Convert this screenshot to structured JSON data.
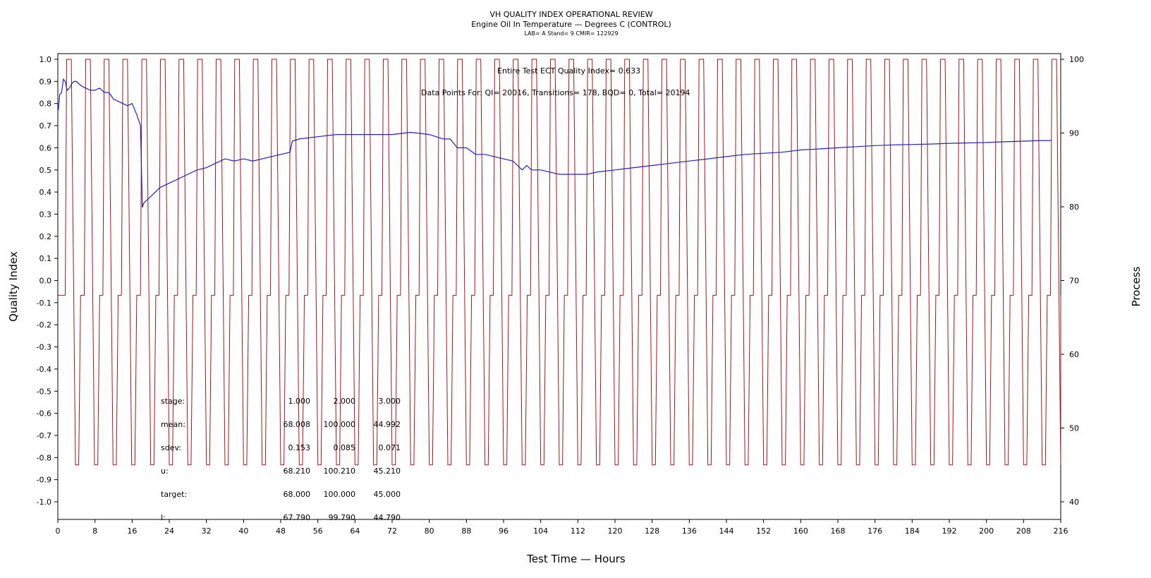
{
  "chart_data": {
    "type": "line",
    "title": "VH QUALITY INDEX OPERATIONAL REVIEW",
    "subtitle": "Engine Oil In Temperature — Degrees C (CONTROL)",
    "subtitle2": "LAB= A Stand= 9 CMIR= 122929",
    "xlabel": "Test Time — Hours",
    "ylabel": "Quality Index",
    "y2label": "Process",
    "xlim": [
      0,
      216
    ],
    "ylim": [
      -1.0,
      1.0
    ],
    "y2lim": [
      40,
      100
    ],
    "xticks": [
      "0",
      "8",
      "16",
      "24",
      "32",
      "40",
      "48",
      "56",
      "64",
      "72",
      "80",
      "88",
      "96",
      "104",
      "112",
      "120",
      "128",
      "136",
      "144",
      "152",
      "160",
      "168",
      "176",
      "184",
      "192",
      "200",
      "208",
      "216"
    ],
    "yticks": [
      "1.0",
      "0.9",
      "0.8",
      "0.7",
      "0.6",
      "0.5",
      "0.4",
      "0.3",
      "0.2",
      "0.1",
      "0.0",
      "-0.1",
      "-0.2",
      "-0.3",
      "-0.4",
      "-0.5",
      "-0.6",
      "-0.7",
      "-0.8",
      "-0.9",
      "-1.0"
    ],
    "y2ticks": [
      "100",
      "90",
      "80",
      "70",
      "60",
      "50",
      "40"
    ],
    "annotation_qi": "Entire Test ECT Quality Index=   0.633",
    "annotation_points": "Data Points For: QI= 20016, Transitions=   178, BQD=     0, Total= 20194",
    "stats": {
      "rows": [
        {
          "label": "stage:",
          "v1": "1.000",
          "v2": "2.000",
          "v3": "3.000"
        },
        {
          "label": "mean:",
          "v1": "68.008",
          "v2": "100.000",
          "v3": "44.992"
        },
        {
          "label": "sdev:",
          "v1": "0.153",
          "v2": "0.085",
          "v3": "0.071"
        },
        {
          "label": "u:",
          "v1": "68.210",
          "v2": "100.210",
          "v3": "45.210"
        },
        {
          "label": "target:",
          "v1": "68.000",
          "v2": "100.000",
          "v3": "45.000"
        },
        {
          "label": "l:",
          "v1": "67.790",
          "v2": "99.790",
          "v3": "44.790"
        }
      ]
    },
    "series": [
      {
        "axis": "left",
        "color": "#2222aa",
        "x": [
          0.1,
          0.4,
          0.8,
          1.2,
          1.6,
          2.0,
          2.5,
          3.0,
          3.5,
          4.0,
          5.0,
          6.0,
          7.0,
          8.0,
          9.0,
          10.0,
          11.0,
          12.0,
          13.0,
          14.0,
          15.0,
          16.0,
          17.0,
          17.8,
          18.2,
          18.5,
          19.0,
          20.0,
          22.0,
          24.0,
          26.0,
          28.0,
          30.0,
          32.0,
          34.0,
          36.0,
          38.0,
          40.0,
          42.0,
          44.0,
          46.0,
          48.0,
          50.0,
          50.5,
          52.0,
          56.0,
          60.0,
          64.0,
          68.0,
          72.0,
          76.0,
          80.0,
          83.0,
          84.5,
          86.0,
          88.0,
          90.0,
          92.0,
          94.0,
          96.0,
          98.0,
          100.0,
          101.0,
          102.0,
          104.0,
          106.0,
          108.0,
          110.0,
          112.0,
          114.0,
          116.0,
          120.0,
          124.0,
          128.0,
          132.0,
          136.0,
          140.0,
          144.0,
          148.0,
          152.0,
          156.0,
          160.0,
          164.0,
          168.0,
          172.0,
          176.0,
          180.0,
          184.0,
          188.0,
          192.0,
          196.0,
          200.0,
          204.0,
          208.0,
          212.0,
          214.0
        ],
        "y": [
          0.77,
          0.84,
          0.85,
          0.91,
          0.9,
          0.86,
          0.87,
          0.89,
          0.9,
          0.9,
          0.88,
          0.87,
          0.86,
          0.86,
          0.87,
          0.85,
          0.85,
          0.82,
          0.81,
          0.8,
          0.79,
          0.8,
          0.75,
          0.7,
          0.33,
          0.35,
          0.36,
          0.38,
          0.42,
          0.44,
          0.46,
          0.48,
          0.5,
          0.51,
          0.53,
          0.55,
          0.54,
          0.55,
          0.54,
          0.55,
          0.56,
          0.57,
          0.58,
          0.63,
          0.64,
          0.65,
          0.66,
          0.66,
          0.66,
          0.66,
          0.67,
          0.66,
          0.64,
          0.64,
          0.6,
          0.6,
          0.57,
          0.57,
          0.56,
          0.55,
          0.54,
          0.5,
          0.52,
          0.5,
          0.5,
          0.49,
          0.48,
          0.48,
          0.48,
          0.48,
          0.49,
          0.5,
          0.51,
          0.52,
          0.53,
          0.54,
          0.55,
          0.56,
          0.57,
          0.575,
          0.58,
          0.59,
          0.595,
          0.6,
          0.605,
          0.61,
          0.613,
          0.615,
          0.617,
          0.62,
          0.622,
          0.624,
          0.627,
          0.63,
          0.633,
          0.633
        ]
      },
      {
        "axis": "right",
        "color": "#a01818",
        "cycle_starts": [
          1.6,
          5.7,
          9.7,
          13.7,
          17.8,
          21.8,
          25.8,
          29.8,
          33.8,
          37.8,
          41.8,
          45.8,
          49.8,
          53.8,
          57.8,
          61.8,
          65.8,
          69.8,
          73.8,
          77.8,
          81.8,
          85.8,
          89.8,
          93.8,
          97.8,
          101.8,
          105.8,
          109.8,
          113.8,
          117.8,
          121.8,
          125.8,
          129.8,
          133.8,
          137.8,
          141.8,
          145.8,
          149.8,
          153.8,
          157.8,
          161.8,
          165.8,
          169.8,
          173.8,
          177.8,
          181.8,
          185.8,
          189.8,
          193.8,
          197.8,
          201.8,
          205.8,
          209.8,
          213.8
        ],
        "levels": {
          "stage1": 68,
          "stage2": 100,
          "stage3": 45
        },
        "segment_hours": {
          "rise": 0.3,
          "high": 1.0,
          "fall": 0.9,
          "low": 0.7,
          "return": 0.4
        }
      }
    ]
  }
}
